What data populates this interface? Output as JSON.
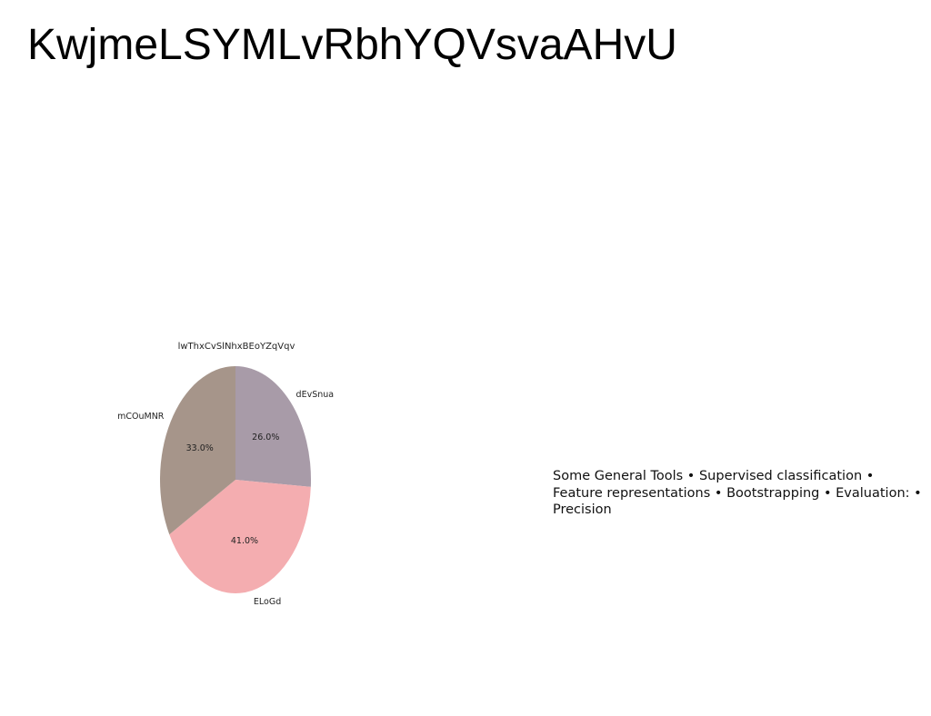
{
  "slide": {
    "title": "KwjmeLSYMLvRbhYQVsvaAHvU",
    "body_text": "Some General Tools • Supervised classification • Feature representations • Bootstrapping • Evaluation: • Precision"
  },
  "chart_data": {
    "type": "pie",
    "title": "lwThxCvSlNhxBEoYZqVqv",
    "start_angle": 90,
    "direction": "clockwise",
    "slices": [
      {
        "label": "dEvSnua",
        "value": 26.0,
        "pct_label": "26.0%",
        "color": "#a89ba8"
      },
      {
        "label": "ELoGd",
        "value": 41.0,
        "pct_label": "41.0%",
        "color": "#f4adb0"
      },
      {
        "label": "mCOuMNR",
        "value": 33.0,
        "pct_label": "33.0%",
        "color": "#a6958a"
      }
    ]
  }
}
